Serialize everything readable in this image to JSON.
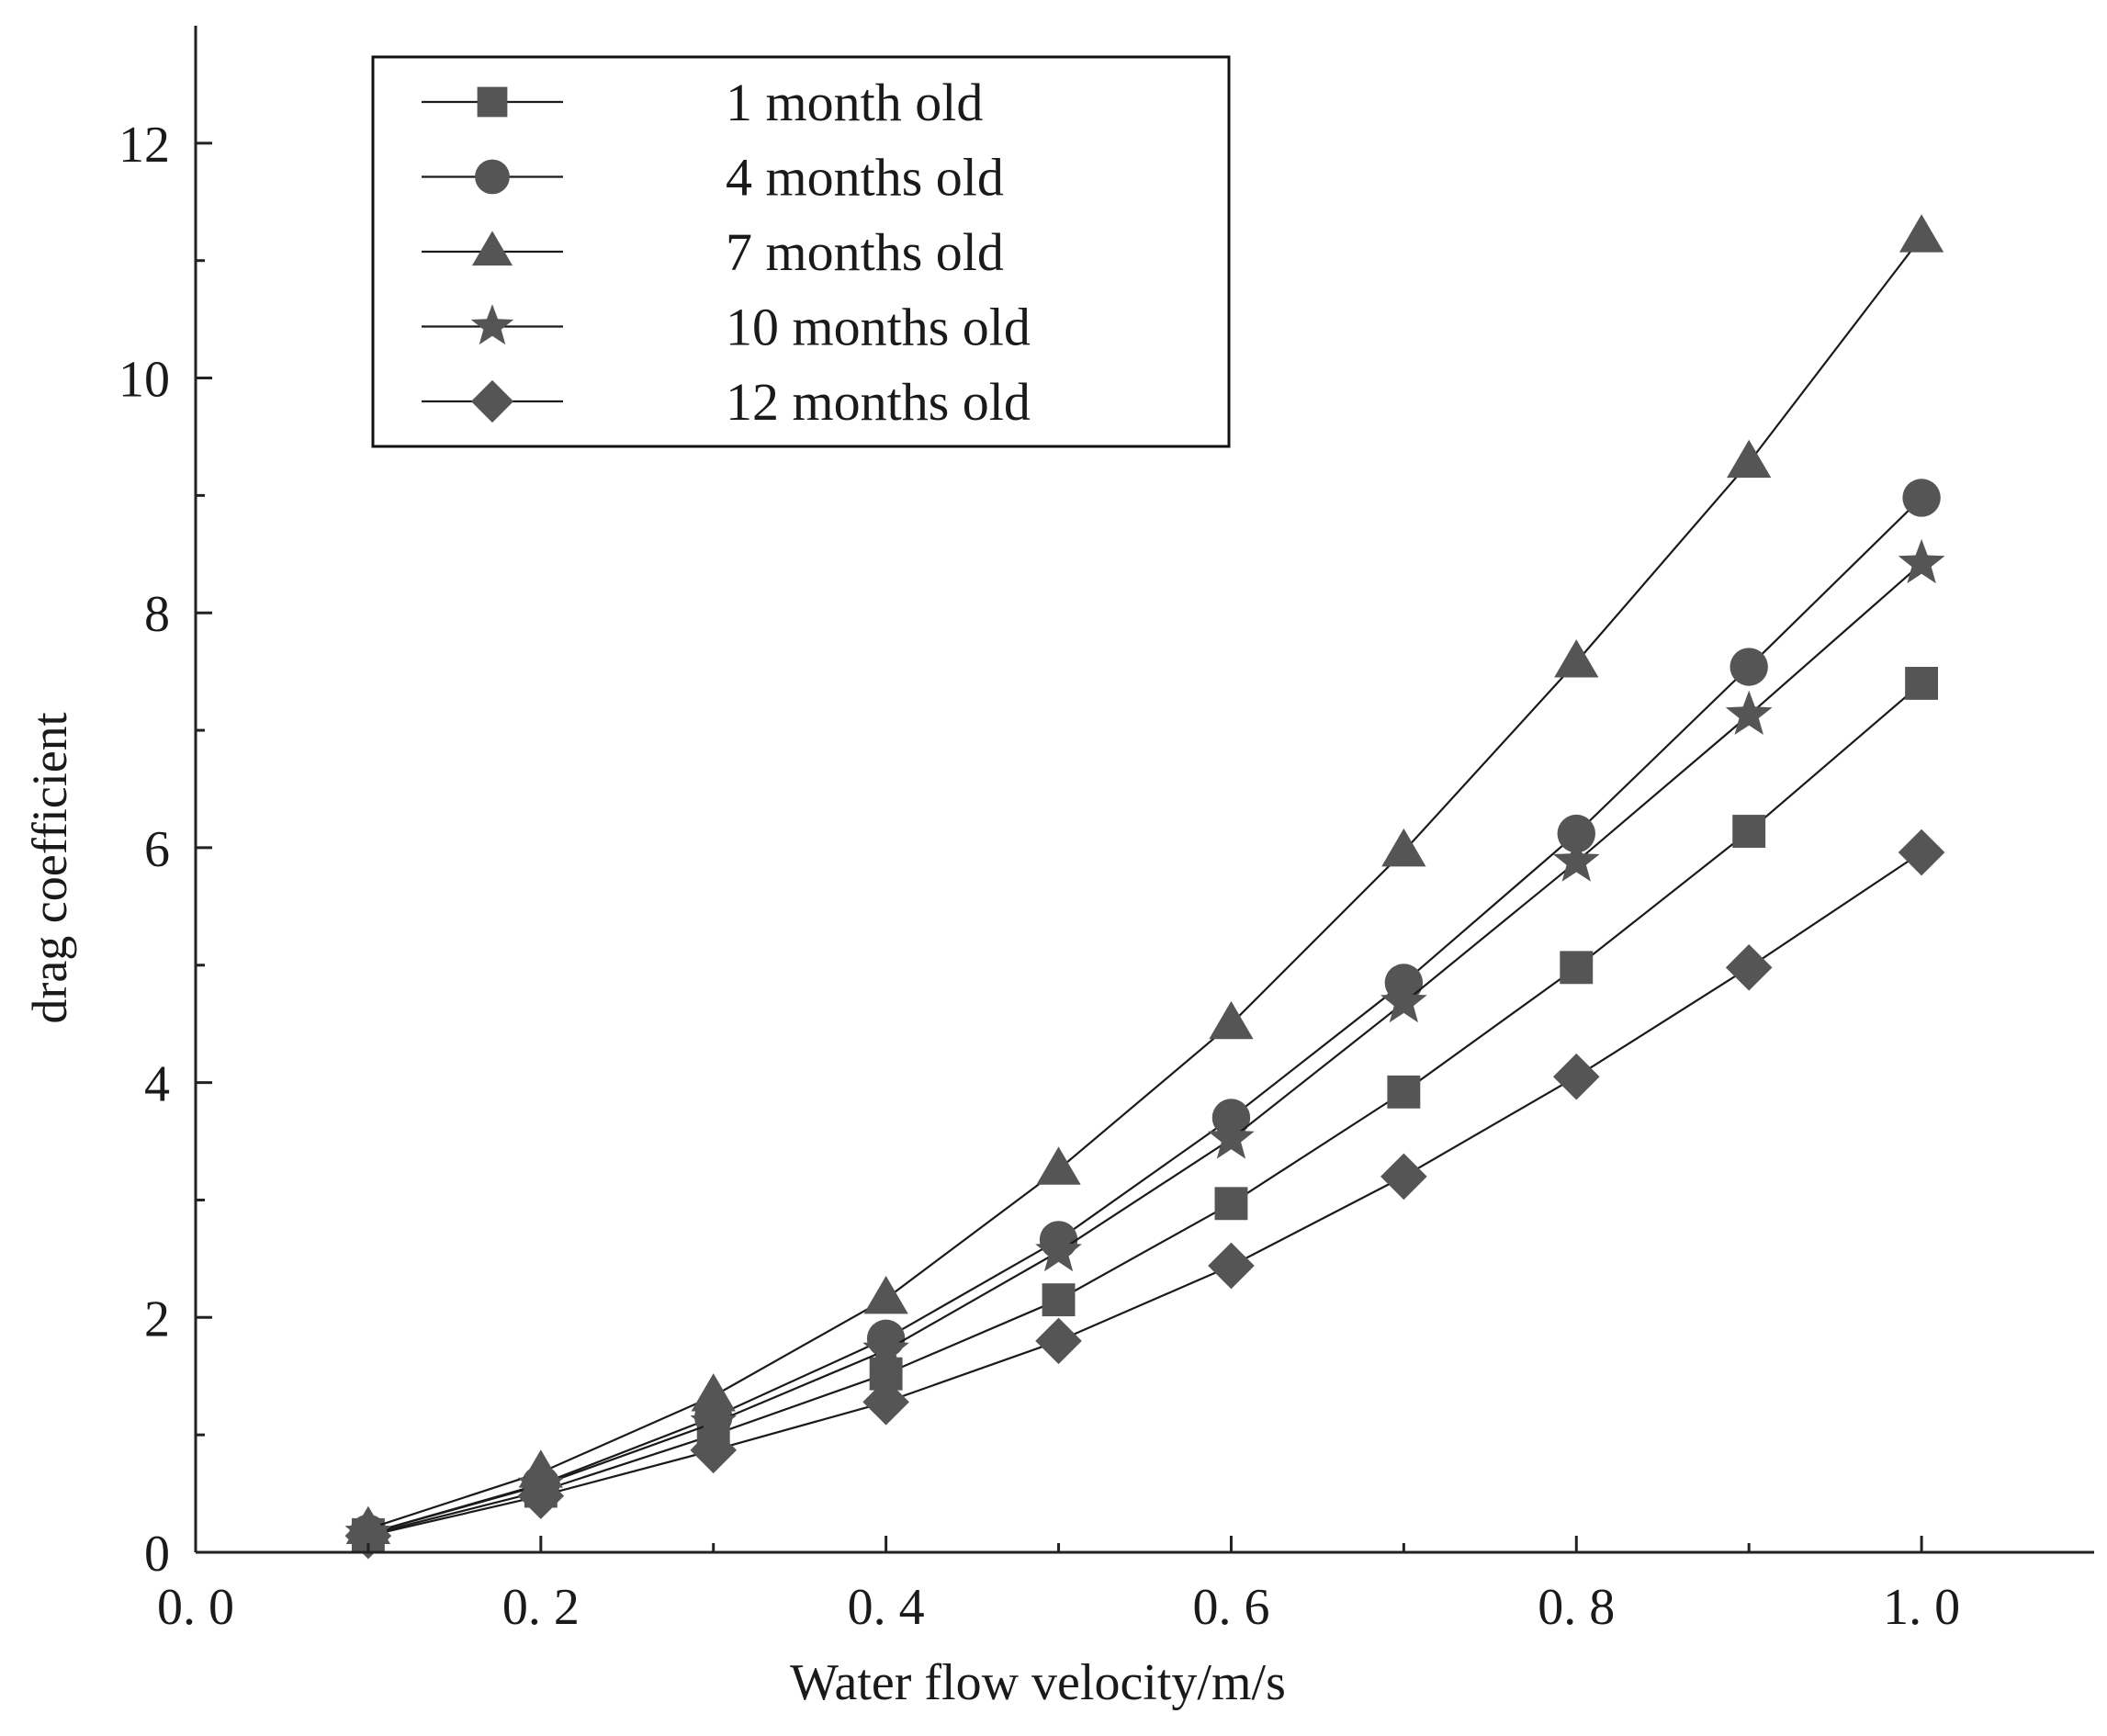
{
  "chart_data": {
    "type": "line",
    "title": "",
    "xlabel": "Water flow velocity/m/s",
    "ylabel": "drag coefficient",
    "xlim": [
      0.0,
      1.1
    ],
    "ylim": [
      0,
      13
    ],
    "x_ticks": [
      0.0,
      0.2,
      0.4,
      0.6,
      0.8,
      1.0
    ],
    "x_tick_labels": [
      "0. 0",
      "0. 2",
      "0. 4",
      "0. 6",
      "0. 8",
      "1. 0"
    ],
    "y_ticks": [
      0,
      2,
      4,
      6,
      8,
      10,
      12
    ],
    "y_tick_labels": [
      "0",
      "2",
      "4",
      "6",
      "8",
      "10",
      "12"
    ],
    "grid": false,
    "legend_position": "top-left",
    "marker_color": "#555555",
    "line_color": "#1a1a1a",
    "x": [
      0.1,
      0.2,
      0.3,
      0.4,
      0.5,
      0.6,
      0.7,
      0.8,
      0.9,
      1.0
    ],
    "series": [
      {
        "name": "1 month old",
        "marker": "square",
        "values": [
          0.15,
          0.52,
          1.0,
          1.52,
          2.15,
          2.97,
          3.92,
          4.98,
          6.14,
          7.4
        ]
      },
      {
        "name": "4 months old",
        "marker": "circle",
        "values": [
          0.16,
          0.58,
          1.15,
          1.82,
          2.66,
          3.7,
          4.85,
          6.12,
          7.54,
          8.98
        ]
      },
      {
        "name": "7 months old",
        "marker": "triangle",
        "values": [
          0.2,
          0.68,
          1.33,
          2.16,
          3.26,
          4.5,
          5.97,
          7.58,
          9.28,
          11.2
        ]
      },
      {
        "name": "10 months old",
        "marker": "star",
        "values": [
          0.16,
          0.57,
          1.1,
          1.72,
          2.56,
          3.52,
          4.68,
          5.88,
          7.13,
          8.42
        ]
      },
      {
        "name": "12 months old",
        "marker": "diamond",
        "values": [
          0.14,
          0.48,
          0.87,
          1.28,
          1.8,
          2.44,
          3.2,
          4.05,
          4.98,
          5.96
        ]
      }
    ]
  }
}
